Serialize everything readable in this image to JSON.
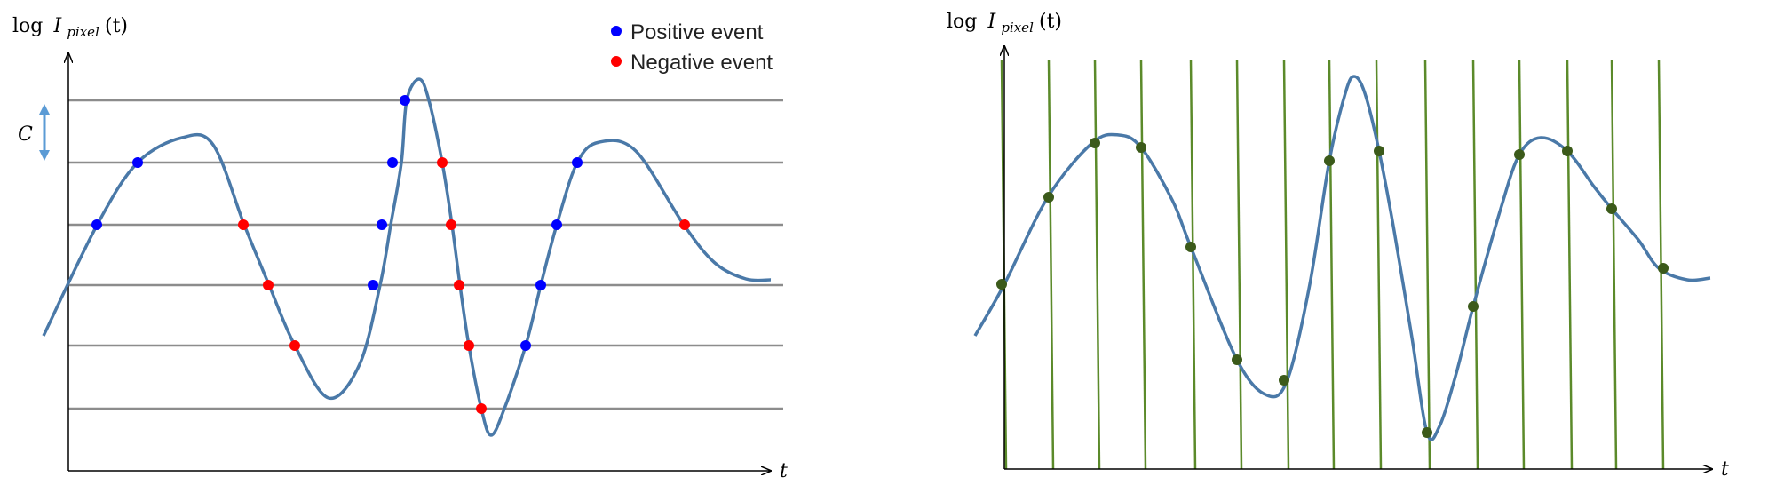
{
  "left_panel": {
    "y_label_log": "log",
    "y_label_I": "I",
    "y_label_sub": "pixel",
    "y_label_arg": "(t)",
    "x_label": "t",
    "threshold_label": "C",
    "legend": {
      "positive": "Positive event",
      "negative": "Negative event"
    }
  },
  "right_panel": {
    "y_label_log": "log",
    "y_label_I": "I",
    "y_label_sub": "pixel",
    "y_label_arg": "(t)",
    "x_label": "t"
  },
  "colors": {
    "curve": "#4a79a8",
    "threshold_line": "#8c8c8c",
    "positive": "#0000ff",
    "negative": "#ff0000",
    "sample_line": "#5b8a2a",
    "sample_dot": "#3b5a1a",
    "double_arrow": "#5b9bd5"
  }
}
